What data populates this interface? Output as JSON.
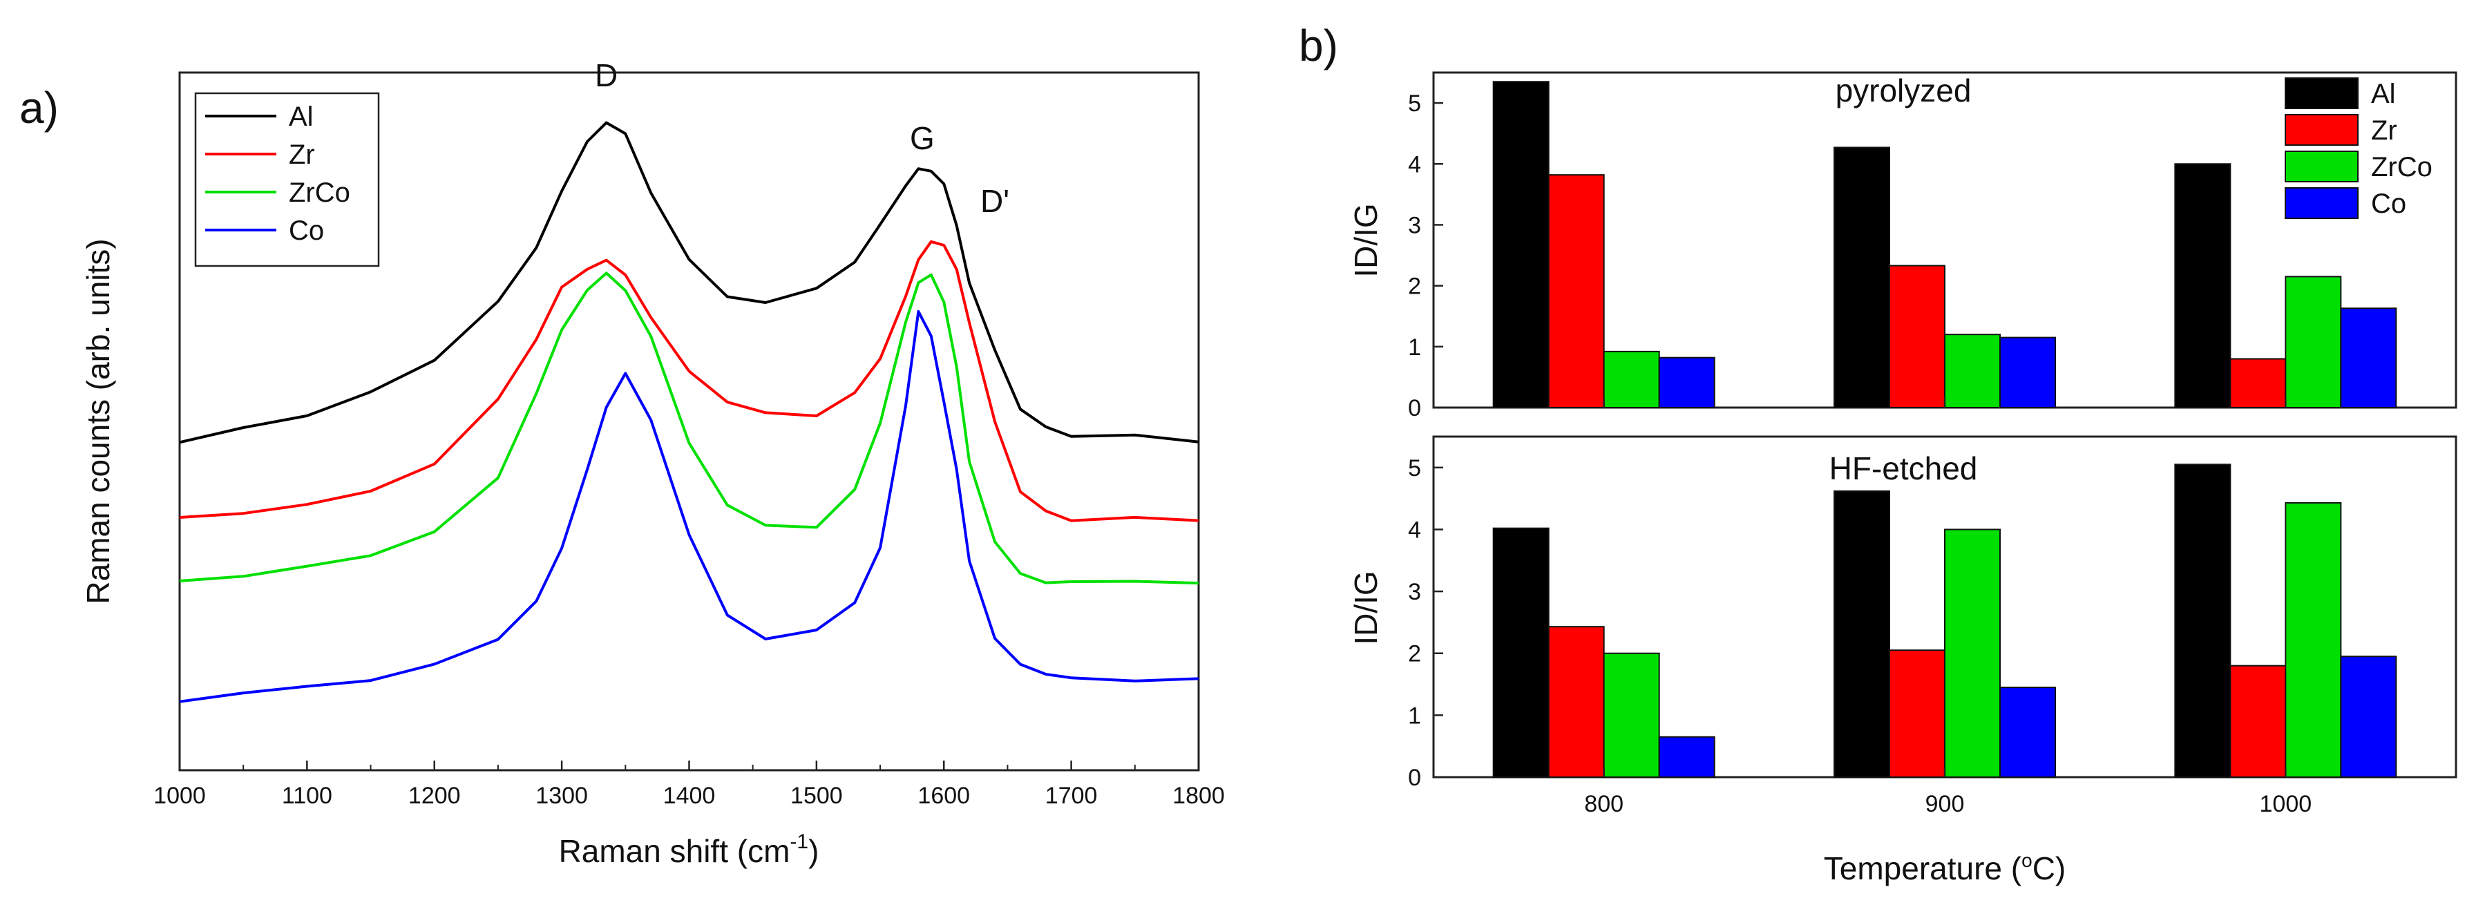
{
  "colors": {
    "Al": "#000000",
    "Zr": "#ff0000",
    "ZrCo": "#00e000",
    "Co": "#0000ff"
  },
  "panel_labels": {
    "a": "a)",
    "b": "b)"
  },
  "chart_data": [
    {
      "type": "line",
      "panel": "a",
      "title": "",
      "xlabel_main": "Raman shift (cm",
      "xlabel_sup": "-1",
      "xlabel_tail": ")",
      "ylabel": "Raman counts (arb. units)",
      "xlim": [
        1000,
        1800
      ],
      "ylim": [
        0,
        100
      ],
      "xticks": [
        1000,
        1100,
        1200,
        1300,
        1400,
        1500,
        1600,
        1700,
        1800
      ],
      "xtick_labels": [
        "1000",
        "1100",
        "1200",
        "1300",
        "1400",
        "1500",
        "1600",
        "1700",
        "1800"
      ],
      "x": [
        1000,
        1050,
        1100,
        1150,
        1200,
        1250,
        1280,
        1300,
        1320,
        1335,
        1350,
        1370,
        1400,
        1430,
        1460,
        1500,
        1530,
        1550,
        1570,
        1580,
        1590,
        1600,
        1610,
        1620,
        1640,
        1660,
        1680,
        1700,
        1750,
        1800
      ],
      "series": [
        {
          "name": "Al",
          "values": [
            47,
            49,
            51,
            54,
            59,
            67,
            75,
            83,
            90,
            93,
            91,
            83,
            73,
            68,
            67,
            69,
            73,
            78,
            84,
            86,
            86,
            84,
            78,
            70,
            60,
            52,
            49,
            48,
            48,
            47
          ]
        },
        {
          "name": "Zr",
          "values": [
            36,
            37,
            38,
            40,
            44,
            53,
            62,
            69,
            72,
            73,
            71,
            65,
            57,
            53,
            51,
            51,
            54,
            59,
            68,
            73,
            76,
            75,
            72,
            64,
            50,
            40,
            37,
            36,
            36,
            36
          ]
        },
        {
          "name": "ZrCo",
          "values": [
            27,
            28,
            29,
            31,
            34,
            42,
            54,
            63,
            69,
            71,
            69,
            62,
            47,
            38,
            35,
            35,
            40,
            50,
            64,
            70,
            71,
            67,
            58,
            44,
            33,
            28,
            27,
            27,
            27,
            27
          ]
        },
        {
          "name": "Co",
          "values": [
            10,
            11,
            12,
            13,
            15,
            19,
            24,
            32,
            43,
            52,
            57,
            50,
            34,
            22,
            19,
            20,
            24,
            32,
            52,
            66,
            62,
            53,
            43,
            30,
            19,
            15,
            14,
            13,
            13,
            13
          ]
        }
      ],
      "legend": [
        "Al",
        "Zr",
        "ZrCo",
        "Co"
      ],
      "legend_position": "top-left",
      "annotations": [
        {
          "text": "D",
          "x": 1335,
          "y": 98
        },
        {
          "text": "G",
          "x": 1583,
          "y": 89
        },
        {
          "text": "D'",
          "x": 1640,
          "y": 80
        }
      ]
    },
    {
      "type": "bar",
      "panel": "b",
      "subplots": [
        {
          "title": "pyrolyzed",
          "ylabel": "ID/IG",
          "ylim": [
            0,
            5.5
          ],
          "yticks": [
            0,
            1,
            2,
            3,
            4,
            5
          ],
          "categories": [
            "800",
            "900",
            "1000"
          ],
          "series": [
            {
              "name": "Al",
              "values": [
                5.35,
                4.27,
                4.0
              ]
            },
            {
              "name": "Zr",
              "values": [
                3.82,
                2.33,
                0.8
              ]
            },
            {
              "name": "ZrCo",
              "values": [
                0.92,
                1.2,
                2.15
              ]
            },
            {
              "name": "Co",
              "values": [
                0.82,
                1.15,
                1.63
              ]
            }
          ],
          "legend": [
            "Al",
            "Zr",
            "ZrCo",
            "Co"
          ],
          "legend_position": "top-right"
        },
        {
          "title": "HF-etched",
          "ylabel": "ID/IG",
          "ylim": [
            0,
            5.5
          ],
          "yticks": [
            0,
            1,
            2,
            3,
            4,
            5
          ],
          "categories": [
            "800",
            "900",
            "1000"
          ],
          "series": [
            {
              "name": "Al",
              "values": [
                4.02,
                4.62,
                5.05
              ]
            },
            {
              "name": "Zr",
              "values": [
                2.43,
                2.05,
                1.8
              ]
            },
            {
              "name": "ZrCo",
              "values": [
                2.0,
                4.0,
                4.43
              ]
            },
            {
              "name": "Co",
              "values": [
                0.65,
                1.45,
                1.95
              ]
            }
          ]
        }
      ],
      "xlabel_main": "Temperature (",
      "xlabel_sup": "o",
      "xlabel_tail": "C)"
    }
  ]
}
